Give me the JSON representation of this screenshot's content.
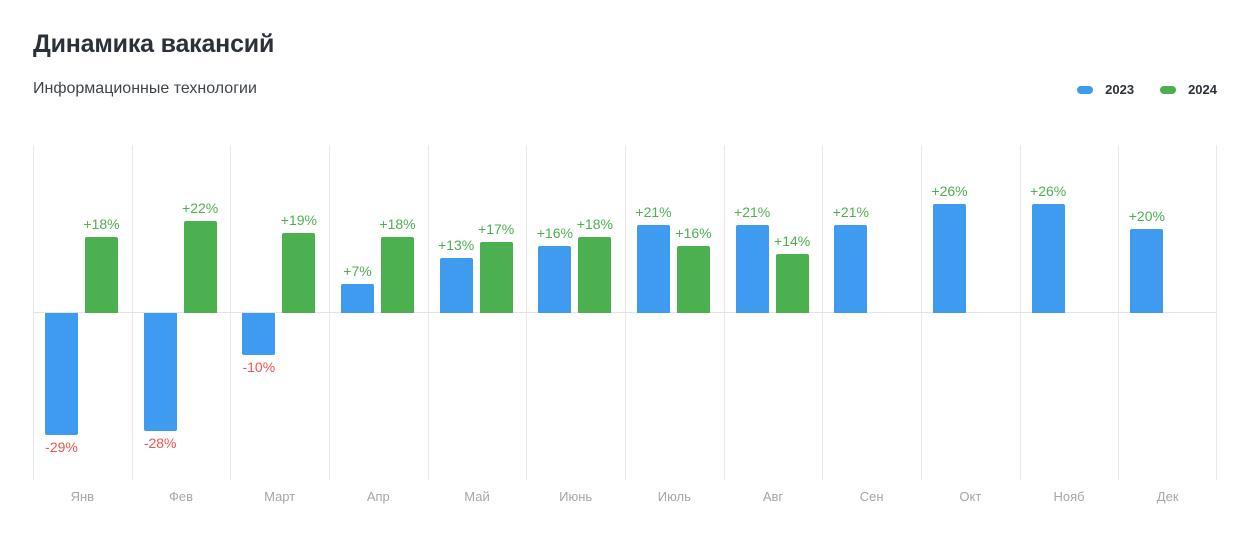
{
  "header": {
    "title": "Динамика вакансий",
    "subtitle": "Информационные технологии"
  },
  "chart_data": {
    "type": "bar",
    "title": "Динамика вакансий",
    "subtitle": "Информационные технологии",
    "categories": [
      "Янв",
      "Фев",
      "Март",
      "Апр",
      "Май",
      "Июнь",
      "Июль",
      "Авг",
      "Сен",
      "Окт",
      "Нояб",
      "Дек"
    ],
    "series": [
      {
        "name": "2023",
        "color": "#3e9bf0",
        "values": [
          -29,
          -28,
          -10,
          7,
          13,
          16,
          21,
          21,
          21,
          26,
          26,
          20
        ]
      },
      {
        "name": "2024",
        "color": "#4caf50",
        "values": [
          18,
          22,
          19,
          18,
          17,
          18,
          16,
          14,
          null,
          null,
          null,
          null
        ]
      }
    ],
    "value_label_format": "signed_percent",
    "positive_label_color": "#4caf50",
    "negative_label_color": "#ef5350",
    "axis_label_color": "#a6a6a6",
    "gridline_color": "#e9e9e9",
    "ylim": [
      -40,
      40
    ],
    "grid": "vertical",
    "legend_position": "top-right"
  }
}
